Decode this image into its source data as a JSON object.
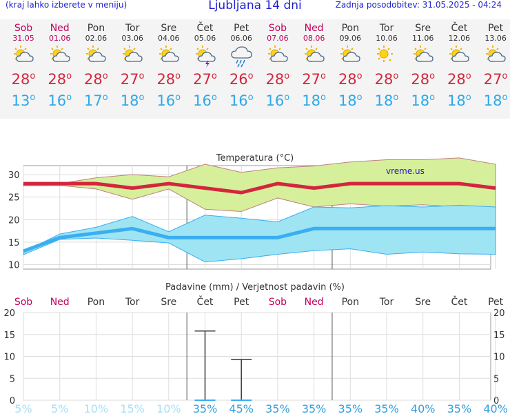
{
  "header": {
    "left_note": "(kraj lahko izberete v meniju)",
    "title": "Ljubljana 14 dni",
    "updated": "Zadnja posodobitev: 31.05.2025 - 04:24"
  },
  "days": [
    {
      "name": "Sob",
      "date": "31.05",
      "weekend": true,
      "icon": "sun-cloud-icon",
      "max": "28",
      "min": "13"
    },
    {
      "name": "Ned",
      "date": "01.06",
      "weekend": true,
      "icon": "sun-cloud-icon",
      "max": "28",
      "min": "16"
    },
    {
      "name": "Pon",
      "date": "02.06",
      "weekend": false,
      "icon": "sun-cloud-icon",
      "max": "28",
      "min": "17"
    },
    {
      "name": "Tor",
      "date": "03.06",
      "weekend": false,
      "icon": "sun-cloud-icon",
      "max": "27",
      "min": "18"
    },
    {
      "name": "Sre",
      "date": "04.06",
      "weekend": false,
      "icon": "sun-cloud-icon",
      "max": "28",
      "min": "16"
    },
    {
      "name": "Čet",
      "date": "05.06",
      "weekend": false,
      "icon": "thunderstorm-icon",
      "max": "27",
      "min": "16"
    },
    {
      "name": "Pet",
      "date": "06.06",
      "weekend": false,
      "icon": "rain-cloud-icon",
      "max": "26",
      "min": "16"
    },
    {
      "name": "Sob",
      "date": "07.06",
      "weekend": true,
      "icon": "sun-cloud-icon",
      "max": "28",
      "min": "16"
    },
    {
      "name": "Ned",
      "date": "08.06",
      "weekend": true,
      "icon": "sun-cloud-icon",
      "max": "27",
      "min": "18"
    },
    {
      "name": "Pon",
      "date": "09.06",
      "weekend": false,
      "icon": "sun-cloud-icon",
      "max": "28",
      "min": "18"
    },
    {
      "name": "Tor",
      "date": "10.06",
      "weekend": false,
      "icon": "sun-icon",
      "max": "28",
      "min": "18"
    },
    {
      "name": "Sre",
      "date": "11.06",
      "weekend": false,
      "icon": "sun-cloud-icon",
      "max": "28",
      "min": "18"
    },
    {
      "name": "Čet",
      "date": "12.06",
      "weekend": false,
      "icon": "sun-cloud-icon",
      "max": "28",
      "min": "18"
    },
    {
      "name": "Pet",
      "date": "13.06",
      "weekend": false,
      "icon": "sun-cloud-icon",
      "max": "27",
      "min": "18"
    }
  ],
  "degree_symbol": "o",
  "colors": {
    "max_line": "#d3263d",
    "min_line": "#3aaef0",
    "max_band": "#d6ef9a",
    "min_band": "#9fe4f3",
    "weekend": "#c0005a",
    "weekday": "#333333",
    "low_prob": "#a8dff6",
    "high_prob": "#2f9fe0"
  },
  "chart_data": [
    {
      "type": "line",
      "title": "Temperatura (°C)",
      "watermark": "vreme.us",
      "x": [
        "31.05",
        "01.06",
        "02.06",
        "03.06",
        "04.06",
        "05.06",
        "06.06",
        "07.06",
        "08.06",
        "09.06",
        "10.06",
        "11.06",
        "12.06",
        "13.06"
      ],
      "ylim": [
        9,
        32
      ],
      "yticks": [
        10,
        15,
        20,
        25,
        30
      ],
      "series": [
        {
          "values": [
            28,
            28,
            28,
            27,
            28,
            27,
            26,
            28,
            27,
            28,
            28,
            28,
            28,
            27
          ]
        },
        {
          "values": [
            13,
            16,
            17,
            18,
            16,
            16,
            16,
            16,
            18,
            18,
            18,
            18,
            18,
            18
          ]
        }
      ],
      "max_band": {
        "upper": [
          27.9,
          28,
          29.3,
          30,
          29.5,
          32.3,
          30.5,
          31.5,
          31.9,
          32.8,
          33.3,
          33.3,
          33.7,
          32.3
        ],
        "lower": [
          27.5,
          27.6,
          26.8,
          24.5,
          26.8,
          22.3,
          21.8,
          24.8,
          22.8,
          23.5,
          23,
          23.3,
          22.8,
          22
        ]
      },
      "min_band": {
        "upper": [
          12.8,
          16.8,
          18.3,
          20.7,
          17.3,
          21,
          20.3,
          19.5,
          22.8,
          22.6,
          23.1,
          22.8,
          23.2,
          22.8
        ],
        "lower": [
          12.2,
          15.6,
          15.9,
          15.4,
          14.8,
          10.6,
          11.3,
          12.3,
          13.1,
          13.5,
          12.3,
          12.8,
          12.4,
          12.3
        ]
      }
    },
    {
      "type": "bar",
      "title": "Padavine (mm) / Verjetnost padavin (%)",
      "categories": [
        "Sob",
        "Ned",
        "Pon",
        "Tor",
        "Sre",
        "Čet",
        "Pet",
        "Sob",
        "Ned",
        "Pon",
        "Tor",
        "Sre",
        "Čet",
        "Pet"
      ],
      "ylim": [
        0,
        20
      ],
      "yticks": [
        0,
        5,
        10,
        15,
        20
      ],
      "precip_mm": [
        0,
        0,
        0,
        0,
        0,
        0,
        0,
        0,
        0,
        0,
        0,
        0,
        0,
        0
      ],
      "error_high": [
        null,
        null,
        null,
        null,
        null,
        15.8,
        9.3,
        null,
        null,
        null,
        null,
        null,
        null,
        null
      ],
      "probability": [
        "5%",
        "5%",
        "10%",
        "15%",
        "10%",
        "35%",
        "45%",
        "35%",
        "35%",
        "35%",
        "35%",
        "40%",
        "35%",
        "40%"
      ]
    }
  ]
}
